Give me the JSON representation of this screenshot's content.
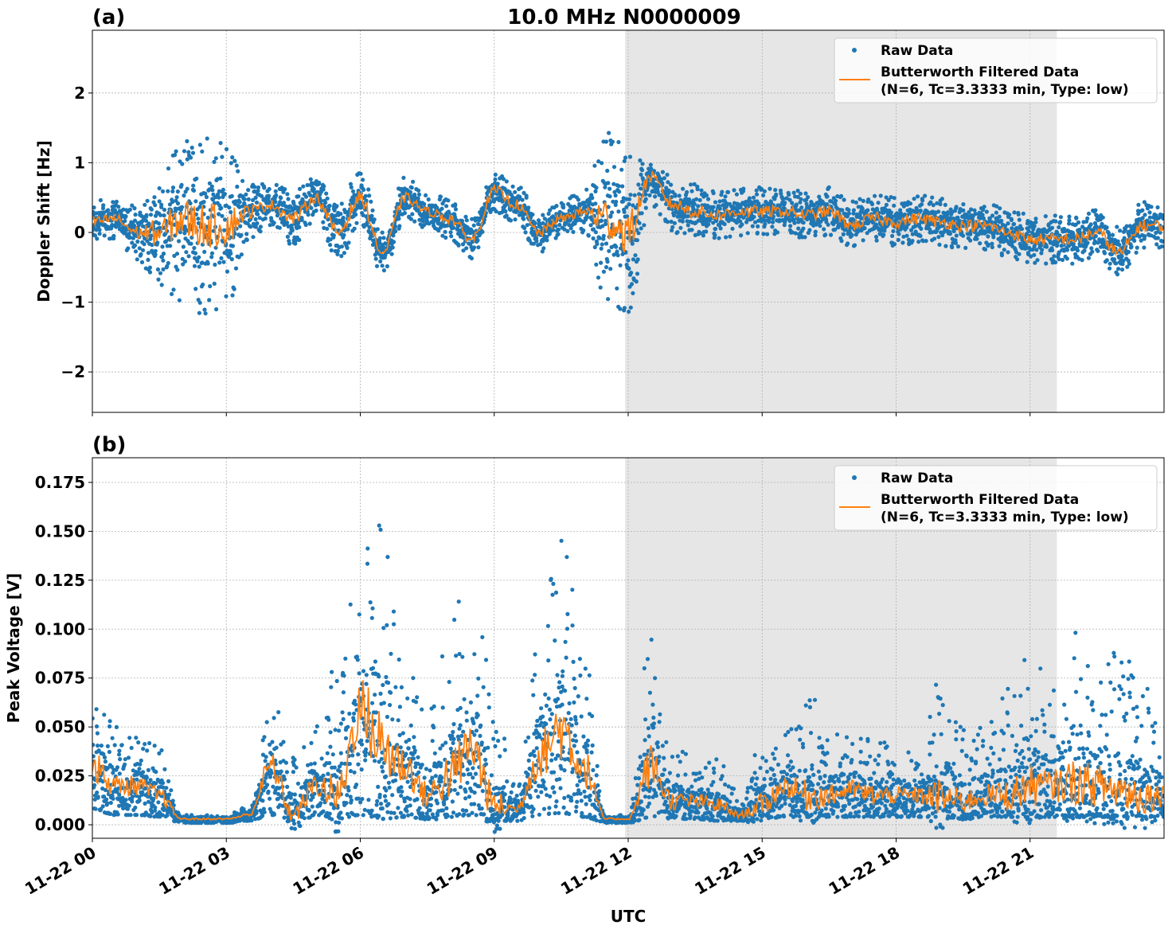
{
  "title": "10.0 MHz N0000009",
  "colors": {
    "raw": "#1f77b4",
    "filtered": "#ff7f0e",
    "shade": "#e6e6e6",
    "grid": "#b0b0b0"
  },
  "chart_data": [
    {
      "type": "scatter+line",
      "panel_label": "(a)",
      "ylabel": "Doppler Shift [Hz]",
      "xlabel": "",
      "x_unit": "hours UTC on 11-22",
      "xlim": [
        0,
        24
      ],
      "ylim": [
        -2.58,
        2.9
      ],
      "yticks": [
        -2,
        -1,
        0,
        1,
        2
      ],
      "ytick_labels": [
        "−2",
        "−1",
        "0",
        "1",
        "2"
      ],
      "shaded_x": [
        11.93,
        21.6
      ],
      "grid": true,
      "legend": "top-right",
      "legend_entries": [
        "Raw Data",
        "Butterworth Filtered Data",
        "(N=6, Tc=3.3333 min, Type: low)"
      ],
      "x": [
        0,
        0.5,
        1,
        1.5,
        2,
        2.5,
        3,
        3.5,
        4,
        4.5,
        5,
        5.5,
        6,
        6.5,
        7,
        7.5,
        8,
        8.5,
        9,
        9.5,
        10,
        10.5,
        11,
        11.5,
        12,
        12.5,
        13,
        13.5,
        14,
        14.5,
        15,
        15.5,
        16,
        16.5,
        17,
        17.5,
        18,
        18.5,
        19,
        19.5,
        20,
        20.5,
        21,
        21.5,
        22,
        22.5,
        23,
        23.5,
        24
      ],
      "filtered": [
        0.15,
        0.2,
        0,
        0,
        0.2,
        0.1,
        0.1,
        0.3,
        0.4,
        0.2,
        0.5,
        0,
        0.5,
        -0.3,
        0.5,
        0.3,
        0.2,
        -0.1,
        0.6,
        0.4,
        0,
        0.2,
        0.3,
        0.2,
        0,
        0.8,
        0.4,
        0.3,
        0.25,
        0.3,
        0.3,
        0.3,
        0.25,
        0.3,
        0.1,
        0.2,
        0.15,
        0.2,
        0.15,
        0.1,
        0.1,
        0,
        -0.1,
        -0.1,
        -0.1,
        0,
        -0.3,
        0.1,
        0.1
      ],
      "raw_min": [
        -0.15,
        -0.1,
        -0.4,
        -0.8,
        -1.0,
        -1.2,
        -1.1,
        -0.1,
        0.1,
        -0.2,
        0.2,
        -0.4,
        0.1,
        -0.6,
        0.2,
        0.05,
        -0.1,
        -0.4,
        0.3,
        0.1,
        -0.3,
        -0.05,
        0,
        -1.1,
        -1.2,
        0.4,
        0,
        -0.1,
        -0.1,
        -0.05,
        -0.05,
        0,
        -0.1,
        -0.05,
        -0.2,
        -0.15,
        -0.2,
        -0.15,
        -0.2,
        -0.25,
        -0.25,
        -0.35,
        -0.45,
        -0.45,
        -0.45,
        -0.35,
        -0.65,
        -0.25,
        -0.25
      ],
      "raw_max": [
        0.45,
        0.5,
        0.4,
        0.8,
        1.4,
        1.4,
        1.3,
        0.7,
        0.7,
        0.6,
        0.8,
        0.4,
        0.9,
        0.0,
        0.8,
        0.55,
        0.5,
        0.2,
        0.9,
        0.7,
        0.3,
        0.45,
        0.6,
        1.5,
        1.2,
        1.0,
        0.8,
        0.7,
        0.6,
        0.65,
        0.65,
        0.6,
        0.6,
        0.65,
        0.45,
        0.6,
        0.5,
        0.55,
        0.5,
        0.45,
        0.45,
        0.35,
        0.25,
        0.25,
        0.25,
        0.35,
        0.1,
        0.45,
        0.45
      ]
    },
    {
      "type": "scatter+line",
      "panel_label": "(b)",
      "ylabel": "Peak Voltage [V]",
      "xlabel": "UTC",
      "x_unit": "hours UTC on 11-22",
      "xlim": [
        0,
        24
      ],
      "ylim": [
        -0.0069,
        0.1876
      ],
      "yticks": [
        0,
        0.025,
        0.05,
        0.075,
        0.1,
        0.125,
        0.15,
        0.175
      ],
      "ytick_labels": [
        "0.000",
        "0.025",
        "0.050",
        "0.075",
        "0.100",
        "0.125",
        "0.150",
        "0.175"
      ],
      "xticks": [
        0,
        3,
        6,
        9,
        12,
        15,
        18,
        21
      ],
      "xtick_labels": [
        "11-22 00",
        "11-22 03",
        "11-22 06",
        "11-22 09",
        "11-22 12",
        "11-22 15",
        "11-22 18",
        "11-22 21"
      ],
      "shaded_x": [
        11.93,
        21.6
      ],
      "grid": true,
      "legend": "top-right",
      "legend_entries": [
        "Raw Data",
        "Butterworth Filtered Data",
        "(N=6, Tc=3.3333 min, Type: low)"
      ],
      "x": [
        0,
        0.5,
        1,
        1.5,
        2,
        2.5,
        3,
        3.5,
        4,
        4.5,
        5,
        5.5,
        6,
        6.5,
        7,
        7.5,
        8,
        8.5,
        9,
        9.5,
        10,
        10.5,
        11,
        11.5,
        12,
        12.5,
        13,
        13.5,
        14,
        14.5,
        15,
        15.5,
        16,
        16.5,
        17,
        17.5,
        18,
        18.5,
        19,
        19.5,
        20,
        20.5,
        21,
        21.5,
        22,
        22.5,
        23,
        23.5,
        24
      ],
      "filtered": [
        0.03,
        0.02,
        0.02,
        0.015,
        0.003,
        0.003,
        0.003,
        0.005,
        0.03,
        0.005,
        0.02,
        0.015,
        0.06,
        0.04,
        0.03,
        0.015,
        0.025,
        0.04,
        0.01,
        0.008,
        0.035,
        0.05,
        0.03,
        0.003,
        0.003,
        0.03,
        0.012,
        0.012,
        0.01,
        0.005,
        0.01,
        0.02,
        0.015,
        0.015,
        0.018,
        0.015,
        0.015,
        0.015,
        0.014,
        0.012,
        0.015,
        0.015,
        0.02,
        0.02,
        0.022,
        0.02,
        0.018,
        0.015,
        0.015
      ],
      "raw_min": [
        0.008,
        0.005,
        0.005,
        0.004,
        0.001,
        0.001,
        0.001,
        0.002,
        0.005,
        0.002,
        0.004,
        0.003,
        0.005,
        0.003,
        0.004,
        0.003,
        0.004,
        0.005,
        0.002,
        0.002,
        0.005,
        0.006,
        0.004,
        0.001,
        0.001,
        0.004,
        0.003,
        0.003,
        0.002,
        0.002,
        0.003,
        0.004,
        0.004,
        0.004,
        0.004,
        0.004,
        0.004,
        0.004,
        0.004,
        0.003,
        0.004,
        0.004,
        0.004,
        0.004,
        0.004,
        0.004,
        0.004,
        0.004,
        0.004
      ],
      "raw_max": [
        0.08,
        0.05,
        0.045,
        0.04,
        0.005,
        0.005,
        0.005,
        0.01,
        0.065,
        0.04,
        0.05,
        0.09,
        0.135,
        0.17,
        0.09,
        0.06,
        0.11,
        0.13,
        0.065,
        0.02,
        0.1,
        0.15,
        0.09,
        0.005,
        0.005,
        0.1,
        0.04,
        0.035,
        0.035,
        0.015,
        0.05,
        0.05,
        0.07,
        0.05,
        0.045,
        0.05,
        0.04,
        0.04,
        0.08,
        0.05,
        0.05,
        0.07,
        0.09,
        0.07,
        0.1,
        0.09,
        0.095,
        0.085,
        0.05
      ]
    }
  ]
}
